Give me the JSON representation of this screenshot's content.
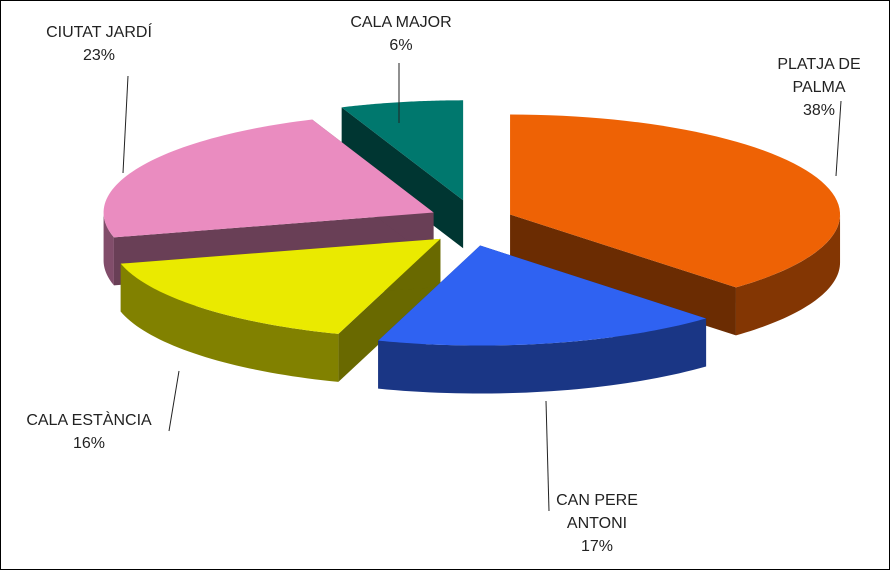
{
  "chart_data": {
    "type": "pie3d",
    "categories": [
      "PLATJA DE PALMA",
      "CAN PERE ANTONI",
      "CALA ESTÀNCIA",
      "CIUTAT JARDÍ",
      "CALA MAJOR"
    ],
    "values": [
      38,
      17,
      16,
      23,
      6
    ],
    "value_labels": [
      "38%",
      "17%",
      "16%",
      "23%",
      "6%"
    ],
    "colors": [
      "#ee6205",
      "#2f62f2",
      "#eaea00",
      "#ea8cc0",
      "#00786e"
    ]
  }
}
